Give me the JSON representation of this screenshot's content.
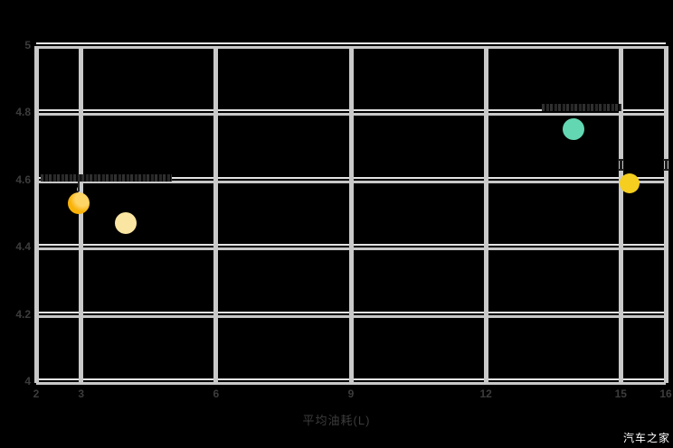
{
  "watermark": "汽车之家",
  "chart_data": {
    "type": "scatter",
    "title": "",
    "xlabel": "平均油耗(L)",
    "ylabel": "",
    "xlim": [
      2,
      16
    ],
    "ylim": [
      4,
      5
    ],
    "grid": "on",
    "legend": "none",
    "background_color": "#000000",
    "gridline_color": "#c9c9c9",
    "tick_text_color": "#3c3c3c",
    "xticks": [
      {
        "v": 2,
        "label": "2"
      },
      {
        "v": 3,
        "label": "3"
      },
      {
        "v": 6,
        "label": "6"
      },
      {
        "v": 9,
        "label": "9"
      },
      {
        "v": 12,
        "label": "12"
      },
      {
        "v": 15,
        "label": "15"
      },
      {
        "v": 16,
        "label": "16"
      }
    ],
    "yticks": [
      {
        "v": 5,
        "label": "5"
      },
      {
        "v": 4.8,
        "label": "4.8"
      },
      {
        "v": 4.6,
        "label": "4.6"
      },
      {
        "v": 4.4,
        "label": "4.4"
      },
      {
        "v": 4.2,
        "label": "4.2"
      },
      {
        "v": 4,
        "label": "4"
      }
    ],
    "points": [
      {
        "name": "orange-bubble",
        "x": 2.95,
        "y": 4.53,
        "r": 12,
        "color": "#F9B208"
      },
      {
        "name": "pale-yellow-bubble",
        "x": 4.0,
        "y": 4.47,
        "r": 12,
        "color": "#FBE5A2"
      },
      {
        "name": "teal-bubble",
        "x": 13.95,
        "y": 4.75,
        "r": 12,
        "color": "#63D7B1"
      },
      {
        "name": "gold-bubble",
        "x": 15.2,
        "y": 4.59,
        "r": 11,
        "color": "#F5CE1F"
      },
      {
        "name": "small-gray-dot",
        "x": 2.98,
        "y": 4.57,
        "r": 3.5,
        "color": "#C9CDD0"
      }
    ],
    "annotations": [
      {
        "style": "smudge",
        "name": "left-annotation-text",
        "x1": 2.1,
        "x2": 5.02,
        "y": 4.605,
        "legible": false
      },
      {
        "style": "smudge",
        "name": "right-annotation-text",
        "x1": 13.25,
        "x2": 15.02,
        "y": 4.815,
        "legible": false
      },
      {
        "style": "leader",
        "name": "left-annotation-leader",
        "x": 2.95,
        "y1": 4.593,
        "y2": 4.565
      },
      {
        "style": "ibeam",
        "name": "marker-on-gridline-15",
        "x": 15,
        "y": 4.645
      },
      {
        "style": "ibeam",
        "name": "marker-on-gridline-16",
        "x": 16,
        "y": 4.645
      }
    ]
  }
}
